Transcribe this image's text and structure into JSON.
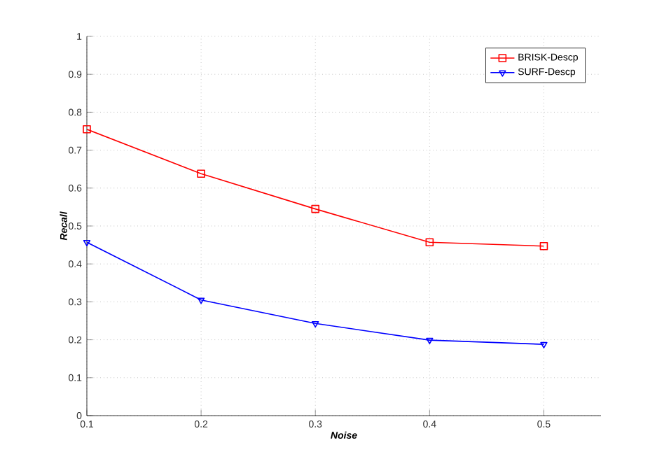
{
  "chart_data": {
    "type": "line",
    "xlabel": "Noise",
    "ylabel": "Recall",
    "x": [
      0.1,
      0.2,
      0.3,
      0.4,
      0.5
    ],
    "series": [
      {
        "name": "BRISK-Descp",
        "color": "#ff0000",
        "marker": "square",
        "values": [
          0.755,
          0.638,
          0.545,
          0.457,
          0.447
        ]
      },
      {
        "name": "SURF-Descp",
        "color": "#0000ff",
        "marker": "triangle",
        "values": [
          0.457,
          0.305,
          0.243,
          0.199,
          0.188
        ]
      }
    ],
    "xlim": [
      0.1,
      0.55
    ],
    "ylim": [
      0,
      1
    ],
    "xticks": [
      0.1,
      0.2,
      0.3,
      0.4,
      0.5
    ],
    "yticks": [
      0,
      0.1,
      0.2,
      0.3,
      0.4,
      0.5,
      0.6,
      0.7,
      0.8,
      0.9,
      1
    ],
    "grid": true,
    "legend": "top right",
    "line_style": "solid"
  }
}
